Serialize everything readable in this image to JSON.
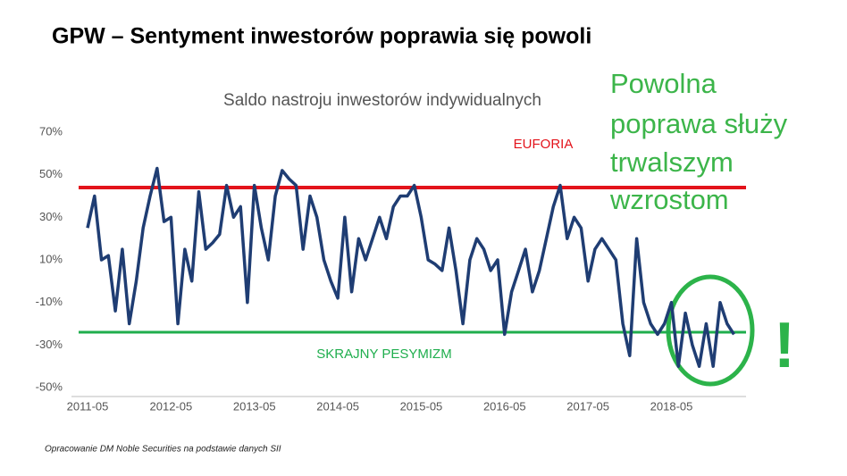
{
  "header": "GPW – Sentyment inwestorów poprawia się powoli",
  "source": "Opracowanie DM Noble Securities  na podstawie danych SII",
  "chart_data": {
    "type": "line",
    "title": "Saldo nastroju inwestorów indywidualnych",
    "color": "#1f3d73",
    "x": [
      "2011-05",
      "2011-06",
      "2011-07",
      "2011-08",
      "2011-09",
      "2011-10",
      "2011-11",
      "2011-12",
      "2012-01",
      "2012-02",
      "2012-03",
      "2012-04",
      "2012-05",
      "2012-06",
      "2012-07",
      "2012-08",
      "2012-09",
      "2012-10",
      "2012-11",
      "2012-12",
      "2013-01",
      "2013-02",
      "2013-03",
      "2013-04",
      "2013-05",
      "2013-06",
      "2013-07",
      "2013-08",
      "2013-09",
      "2013-10",
      "2013-11",
      "2013-12",
      "2014-01",
      "2014-02",
      "2014-03",
      "2014-04",
      "2014-05",
      "2014-06",
      "2014-07",
      "2014-08",
      "2014-09",
      "2014-10",
      "2014-11",
      "2014-12",
      "2015-01",
      "2015-02",
      "2015-03",
      "2015-04",
      "2015-05",
      "2015-06",
      "2015-07",
      "2015-08",
      "2015-09",
      "2015-10",
      "2015-11",
      "2015-12",
      "2016-01",
      "2016-02",
      "2016-03",
      "2016-04",
      "2016-05",
      "2016-06",
      "2016-07",
      "2016-08",
      "2016-09",
      "2016-10",
      "2016-11",
      "2016-12",
      "2017-01",
      "2017-02",
      "2017-03",
      "2017-04",
      "2017-05",
      "2017-06",
      "2017-07",
      "2017-08",
      "2017-09",
      "2017-10",
      "2017-11",
      "2017-12",
      "2018-01",
      "2018-02",
      "2018-03",
      "2018-04",
      "2018-05",
      "2018-06",
      "2018-07",
      "2018-08",
      "2018-09",
      "2018-10",
      "2018-11",
      "2018-12",
      "2019-01",
      "2019-02"
    ],
    "values": [
      25,
      40,
      10,
      12,
      -14,
      15,
      -20,
      0,
      25,
      40,
      53,
      28,
      30,
      -20,
      15,
      0,
      42,
      15,
      18,
      22,
      45,
      30,
      35,
      -10,
      45,
      25,
      10,
      40,
      52,
      48,
      45,
      15,
      40,
      30,
      10,
      0,
      -8,
      30,
      -5,
      20,
      10,
      20,
      30,
      20,
      35,
      40,
      40,
      45,
      30,
      10,
      8,
      5,
      25,
      5,
      -20,
      10,
      20,
      15,
      5,
      10,
      -25,
      -5,
      5,
      15,
      -5,
      5,
      20,
      35,
      45,
      20,
      30,
      25,
      0,
      15,
      20,
      15,
      10,
      -20,
      -35,
      20,
      -10,
      -20,
      -25,
      -20,
      -10,
      -40,
      -15,
      -30,
      -40,
      -20,
      -40,
      -10,
      -20,
      -25
    ],
    "ylim": [
      -50,
      70
    ],
    "yticks": [
      {
        "value": -50,
        "label": "-50%"
      },
      {
        "value": -30,
        "label": "-30%"
      },
      {
        "value": -10,
        "label": "-10%"
      },
      {
        "value": 10,
        "label": "10%"
      },
      {
        "value": 30,
        "label": "30%"
      },
      {
        "value": 50,
        "label": "50%"
      },
      {
        "value": 70,
        "label": "70%"
      }
    ],
    "xticks": [
      "2011-05",
      "2012-05",
      "2013-05",
      "2014-05",
      "2015-05",
      "2016-05",
      "2017-05",
      "2018-05"
    ],
    "reference_lines": [
      {
        "label": "EUFORIA",
        "value": 44,
        "color": "#e3131b"
      },
      {
        "label": "SKRAJNY PESYMIZM",
        "value": -24,
        "color": "#1fae4d"
      }
    ],
    "note": [
      "Powolna",
      "poprawa służy",
      "trwalszym",
      "wzrostom"
    ],
    "exclamation": "!"
  }
}
